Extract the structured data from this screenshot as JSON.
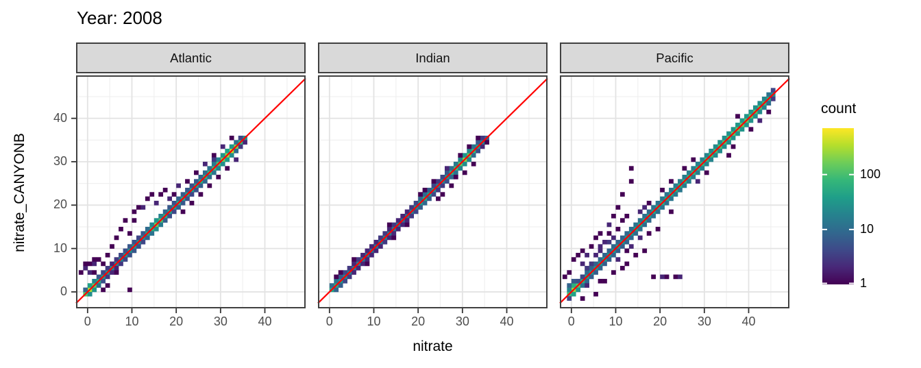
{
  "title": "Year: 2008",
  "colors": {
    "ref_line": "#ff0000",
    "strip_bg": "#d9d9d9",
    "strip_border": "#404040",
    "panel_border": "#404040",
    "grid_major": "#e3e3e3",
    "grid_minor": "#f0f0f0",
    "axis_text": "#4d4d4d",
    "tick_mark": "#333333",
    "text": "#000000",
    "viridis": [
      "#440154",
      "#482878",
      "#3e4a89",
      "#31688e",
      "#26828e",
      "#1f9e89",
      "#35b779",
      "#6dcd59",
      "#b4de2c",
      "#fde725"
    ]
  },
  "legend": {
    "title": "count",
    "tick_labels": [
      "100",
      "10",
      "1"
    ],
    "tick_values": [
      100,
      10,
      1
    ],
    "cmax": 700
  },
  "chart_data": {
    "type": "heatmap",
    "subtype": "bin2d",
    "title": "Year: 2008",
    "xlabel": "nitrate",
    "ylabel": "nitrate_CANYONB",
    "xlim": [
      -2.6,
      49.2
    ],
    "ylim": [
      -3.8,
      49.9
    ],
    "x_ticks": [
      0,
      10,
      20,
      30,
      40
    ],
    "y_ticks": [
      0,
      10,
      20,
      30,
      40
    ],
    "x_minor": [
      5,
      15,
      25,
      35,
      45
    ],
    "y_minor": [
      5,
      15,
      25,
      35,
      45
    ],
    "bin_size": 1,
    "count_scale": "log10",
    "ref_line": {
      "slope": 1,
      "intercept": 0
    },
    "facets": [
      {
        "label": "Atlantic",
        "x_start": -1,
        "diag": [
          120,
          320,
          150,
          60,
          35,
          28,
          22,
          18,
          22,
          25,
          28,
          30,
          26,
          24,
          45,
          70,
          160,
          110,
          55,
          40,
          38,
          55,
          48,
          42,
          38,
          45,
          55,
          65,
          75,
          90,
          110,
          170,
          260,
          380,
          210,
          80,
          30
        ],
        "upper": [
          8,
          40,
          20,
          6,
          4,
          3,
          2,
          3,
          4,
          5,
          6,
          5,
          4,
          6,
          10,
          20,
          30,
          18,
          8,
          6,
          5,
          8,
          7,
          6,
          5,
          6,
          8,
          10,
          12,
          15,
          20,
          30,
          40,
          30,
          12,
          4,
          0
        ],
        "lower": [
          0,
          25,
          30,
          10,
          5,
          3,
          2,
          2,
          3,
          4,
          5,
          6,
          5,
          4,
          8,
          12,
          25,
          15,
          7,
          5,
          4,
          7,
          6,
          5,
          4,
          5,
          7,
          9,
          10,
          12,
          18,
          25,
          35,
          25,
          10,
          3,
          2
        ],
        "outliers": [
          [
            -2,
            4,
            1
          ],
          [
            -1,
            5,
            2
          ],
          [
            -1,
            6,
            1
          ],
          [
            0,
            6,
            1
          ],
          [
            1,
            6,
            2
          ],
          [
            1,
            7,
            1
          ],
          [
            2,
            7,
            1
          ],
          [
            0,
            4,
            2
          ],
          [
            1,
            4,
            1
          ],
          [
            3,
            6,
            1
          ],
          [
            4,
            8,
            1
          ],
          [
            5,
            10,
            1
          ],
          [
            6,
            12,
            1
          ],
          [
            7,
            14,
            1
          ],
          [
            8,
            16,
            1
          ],
          [
            9,
            13,
            1
          ],
          [
            10,
            16,
            1
          ],
          [
            10,
            18,
            1
          ],
          [
            11,
            19,
            1
          ],
          [
            12,
            19,
            2
          ],
          [
            13,
            21,
            1
          ],
          [
            14,
            22,
            1
          ],
          [
            16,
            22,
            1
          ],
          [
            17,
            23,
            1
          ],
          [
            15,
            20,
            2
          ],
          [
            18,
            21,
            2
          ],
          [
            19,
            22,
            1
          ],
          [
            20,
            24,
            2
          ],
          [
            22,
            25,
            1
          ],
          [
            24,
            27,
            1
          ],
          [
            26,
            29,
            2
          ],
          [
            28,
            31,
            1
          ],
          [
            25,
            22,
            1
          ],
          [
            27,
            24,
            1
          ],
          [
            29,
            26,
            1
          ],
          [
            31,
            28,
            1
          ],
          [
            33,
            30,
            2
          ],
          [
            9,
            0,
            1
          ],
          [
            4,
            1,
            1
          ],
          [
            6,
            4,
            1
          ],
          [
            3,
            0,
            1
          ],
          [
            21,
            18,
            1
          ],
          [
            23,
            20,
            1
          ],
          [
            30,
            33,
            2
          ],
          [
            28,
            30,
            3
          ],
          [
            32,
            35,
            1
          ]
        ]
      },
      {
        "label": "Indian",
        "x_start": 0,
        "diag": [
          45,
          55,
          30,
          20,
          15,
          14,
          16,
          14,
          12,
          10,
          12,
          14,
          15,
          13,
          14,
          12,
          10,
          12,
          15,
          20,
          40,
          50,
          35,
          22,
          16,
          20,
          30,
          60,
          90,
          130,
          210,
          150,
          80,
          40,
          18,
          8
        ],
        "upper": [
          10,
          12,
          6,
          4,
          3,
          2,
          3,
          2,
          2,
          2,
          2,
          3,
          3,
          2,
          3,
          2,
          2,
          2,
          3,
          4,
          8,
          10,
          7,
          4,
          3,
          4,
          6,
          10,
          15,
          20,
          30,
          22,
          12,
          6,
          3,
          0
        ],
        "lower": [
          0,
          8,
          7,
          4,
          3,
          2,
          2,
          2,
          2,
          2,
          2,
          2,
          3,
          2,
          2,
          2,
          2,
          2,
          3,
          4,
          7,
          9,
          6,
          4,
          3,
          3,
          5,
          9,
          12,
          18,
          25,
          20,
          10,
          5,
          2,
          1
        ],
        "outliers": [
          [
            1,
            3,
            1
          ],
          [
            2,
            4,
            1
          ],
          [
            14,
            12,
            1
          ],
          [
            17,
            15,
            1
          ],
          [
            20,
            22,
            1
          ],
          [
            21,
            23,
            1
          ],
          [
            23,
            25,
            1
          ],
          [
            25,
            22,
            1
          ],
          [
            27,
            24,
            1
          ],
          [
            28,
            26,
            1
          ],
          [
            29,
            31,
            1
          ],
          [
            31,
            33,
            1
          ],
          [
            26,
            28,
            2
          ],
          [
            24,
            21,
            1
          ],
          [
            13,
            15,
            1
          ],
          [
            8,
            6,
            1
          ],
          [
            5,
            7,
            1
          ],
          [
            33,
            35,
            1
          ],
          [
            30,
            27,
            1
          ],
          [
            32,
            29,
            1
          ]
        ]
      },
      {
        "label": "Pacific",
        "x_start": -1,
        "diag": [
          90,
          260,
          130,
          60,
          40,
          34,
          30,
          30,
          34,
          30,
          30,
          34,
          30,
          30,
          36,
          42,
          46,
          42,
          40,
          46,
          50,
          56,
          50,
          56,
          60,
          62,
          66,
          70,
          72,
          76,
          80,
          84,
          92,
          100,
          110,
          112,
          120,
          130,
          140,
          150,
          140,
          130,
          120,
          108,
          90,
          60,
          25
        ],
        "upper": [
          20,
          60,
          35,
          15,
          10,
          8,
          8,
          9,
          8,
          8,
          9,
          8,
          8,
          9,
          10,
          12,
          12,
          11,
          10,
          12,
          12,
          14,
          12,
          14,
          15,
          15,
          16,
          17,
          17,
          18,
          19,
          20,
          22,
          24,
          26,
          26,
          28,
          30,
          32,
          34,
          32,
          30,
          28,
          25,
          20,
          12,
          4
        ],
        "lower": [
          4,
          40,
          30,
          12,
          9,
          7,
          7,
          8,
          7,
          7,
          8,
          7,
          7,
          8,
          9,
          10,
          11,
          10,
          9,
          11,
          11,
          13,
          11,
          13,
          14,
          14,
          15,
          16,
          16,
          17,
          18,
          19,
          20,
          22,
          24,
          24,
          26,
          28,
          30,
          31,
          30,
          28,
          26,
          23,
          18,
          10,
          3
        ],
        "outliers": [
          [
            13,
            28,
            1
          ],
          [
            13,
            25,
            1
          ],
          [
            11,
            22,
            1
          ],
          [
            18,
            3,
            1
          ],
          [
            20,
            3,
            2
          ],
          [
            21,
            3,
            1
          ],
          [
            23,
            3,
            1
          ],
          [
            24,
            3,
            2
          ],
          [
            22,
            18,
            1
          ],
          [
            19,
            14,
            1
          ],
          [
            16,
            9,
            1
          ],
          [
            14,
            8,
            1
          ],
          [
            12,
            6,
            1
          ],
          [
            3,
            8,
            2
          ],
          [
            2,
            9,
            1
          ],
          [
            1,
            8,
            1
          ],
          [
            0,
            7,
            1
          ],
          [
            -1,
            4,
            1
          ],
          [
            -2,
            3,
            1
          ],
          [
            4,
            10,
            1
          ],
          [
            5,
            12,
            1
          ],
          [
            6,
            13,
            1
          ],
          [
            8,
            15,
            2
          ],
          [
            9,
            17,
            1
          ],
          [
            10,
            19,
            1
          ],
          [
            7,
            2,
            1
          ],
          [
            9,
            4,
            1
          ],
          [
            11,
            5,
            1
          ],
          [
            2,
            -2,
            1
          ],
          [
            5,
            -1,
            1
          ],
          [
            35,
            31,
            1
          ],
          [
            37,
            40,
            1
          ],
          [
            8,
            11,
            3
          ],
          [
            6,
            9,
            2
          ],
          [
            5,
            8,
            2
          ],
          [
            6,
            10,
            2
          ],
          [
            7,
            11,
            2
          ],
          [
            8,
            13,
            1
          ],
          [
            9,
            12,
            2
          ],
          [
            10,
            14,
            1
          ],
          [
            11,
            16,
            1
          ],
          [
            12,
            17,
            1
          ],
          [
            3,
            5,
            3
          ],
          [
            4,
            6,
            3
          ],
          [
            2,
            3,
            4
          ],
          [
            1,
            2,
            5
          ],
          [
            0,
            2,
            6
          ],
          [
            -1,
            1,
            8
          ],
          [
            13,
            10,
            2
          ],
          [
            15,
            12,
            2
          ],
          [
            17,
            13,
            1
          ],
          [
            2,
            6,
            2
          ],
          [
            3,
            1,
            2
          ],
          [
            6,
            2,
            1
          ],
          [
            10,
            7,
            2
          ],
          [
            12,
            9,
            1
          ],
          [
            44,
            41,
            1
          ],
          [
            42,
            39,
            2
          ],
          [
            40,
            37,
            1
          ],
          [
            36,
            33,
            1
          ],
          [
            28,
            25,
            2
          ],
          [
            30,
            27,
            1
          ],
          [
            15,
            18,
            2
          ],
          [
            16,
            19,
            2
          ],
          [
            17,
            20,
            1
          ],
          [
            20,
            23,
            1
          ],
          [
            22,
            25,
            1
          ],
          [
            25,
            28,
            1
          ],
          [
            27,
            30,
            1
          ]
        ]
      }
    ]
  }
}
